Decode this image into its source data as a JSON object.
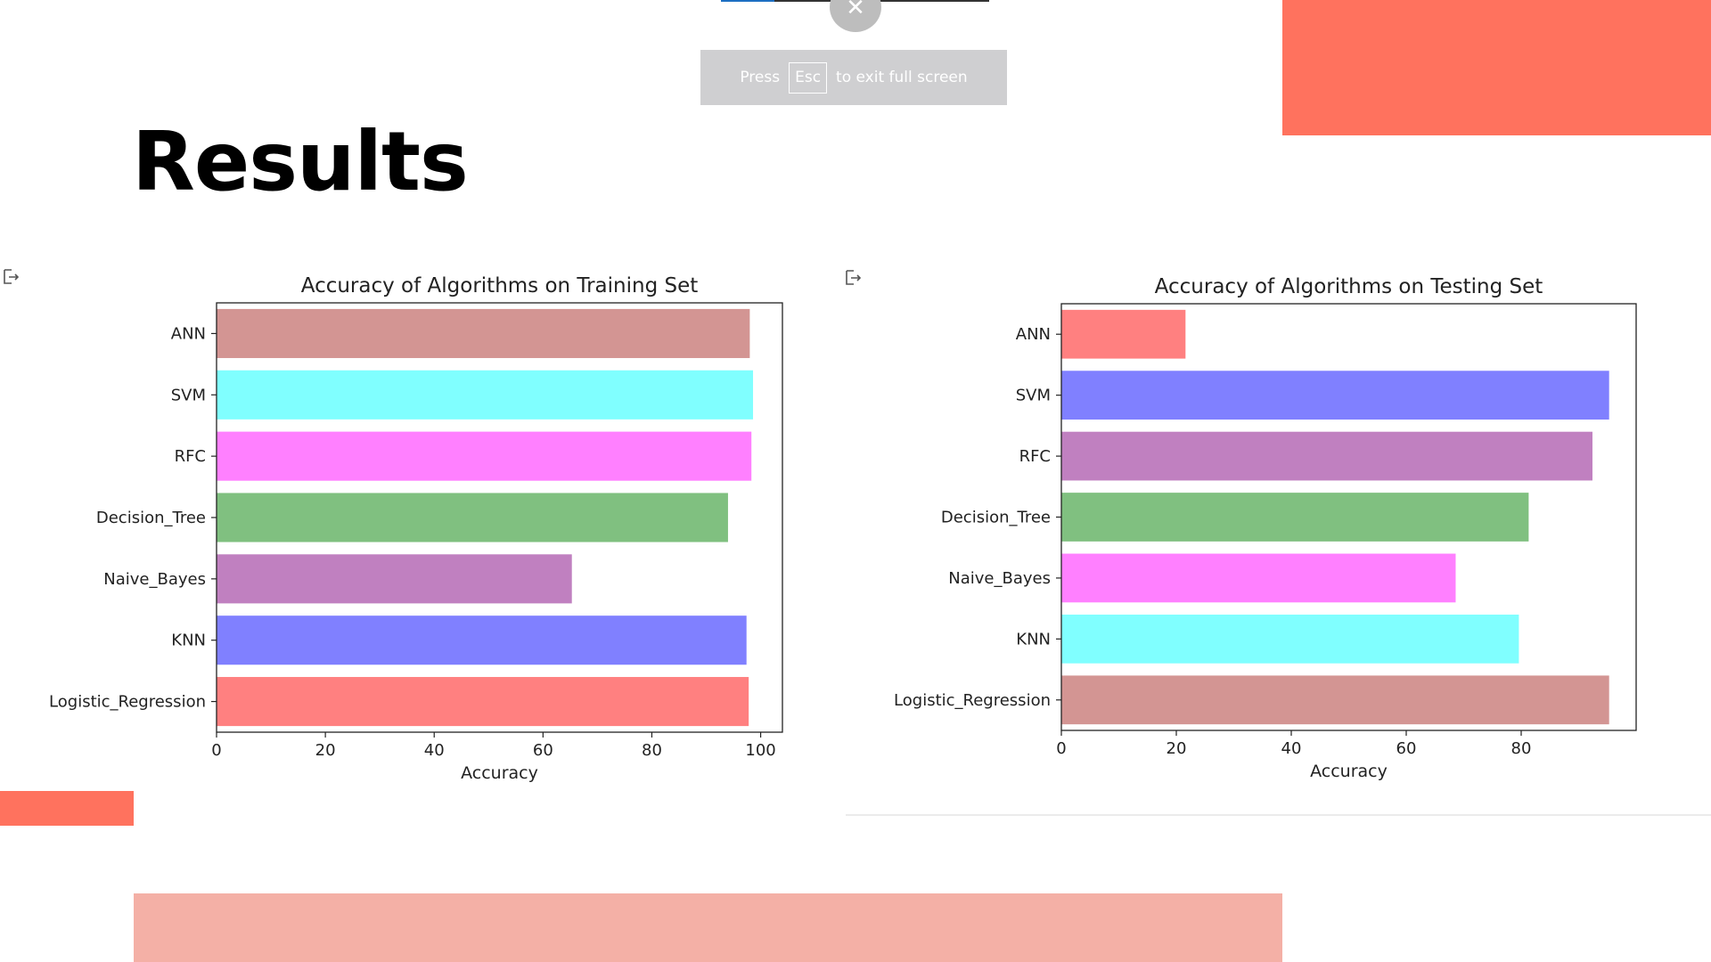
{
  "fullscreen_toast": {
    "press": "Press",
    "key": "Esc",
    "rest": "to exit full screen"
  },
  "close_icon": "close-icon",
  "slide": {
    "title": "Results"
  },
  "colors": {
    "accent_orange": "#ff725e",
    "accent_pink": "#f4b0a6"
  },
  "chart_data": [
    {
      "type": "bar",
      "orientation": "horizontal",
      "title": "Accuracy of Algorithms on Training Set",
      "xlabel": "Accuracy",
      "ylabel": "",
      "xlim": [
        0,
        104
      ],
      "xticks": [
        0,
        20,
        40,
        60,
        80,
        100
      ],
      "categories": [
        "ANN",
        "SVM",
        "RFC",
        "Decision_Tree",
        "Naive_Bayes",
        "KNN",
        "Logistic_Regression"
      ],
      "values": [
        98,
        98.6,
        98.3,
        94,
        65.3,
        97.4,
        97.8
      ],
      "colors": [
        "#d39593",
        "#80ffff",
        "#ff80ff",
        "#80c080",
        "#c080c0",
        "#8080ff",
        "#ff8080"
      ],
      "grid": false
    },
    {
      "type": "bar",
      "orientation": "horizontal",
      "title": "Accuracy of Algorithms on Testing Set",
      "xlabel": "Accuracy",
      "ylabel": "",
      "xlim": [
        0,
        100
      ],
      "xticks": [
        0,
        20,
        40,
        60,
        80
      ],
      "categories": [
        "ANN",
        "SVM",
        "RFC",
        "Decision_Tree",
        "Naive_Bayes",
        "KNN",
        "Logistic_Regression"
      ],
      "values": [
        21.6,
        95.3,
        92.4,
        81.3,
        68.6,
        79.6,
        95.3
      ],
      "colors": [
        "#ff8080",
        "#8080ff",
        "#c080c0",
        "#80c080",
        "#ff80ff",
        "#80ffff",
        "#d39593"
      ],
      "grid": false
    }
  ]
}
